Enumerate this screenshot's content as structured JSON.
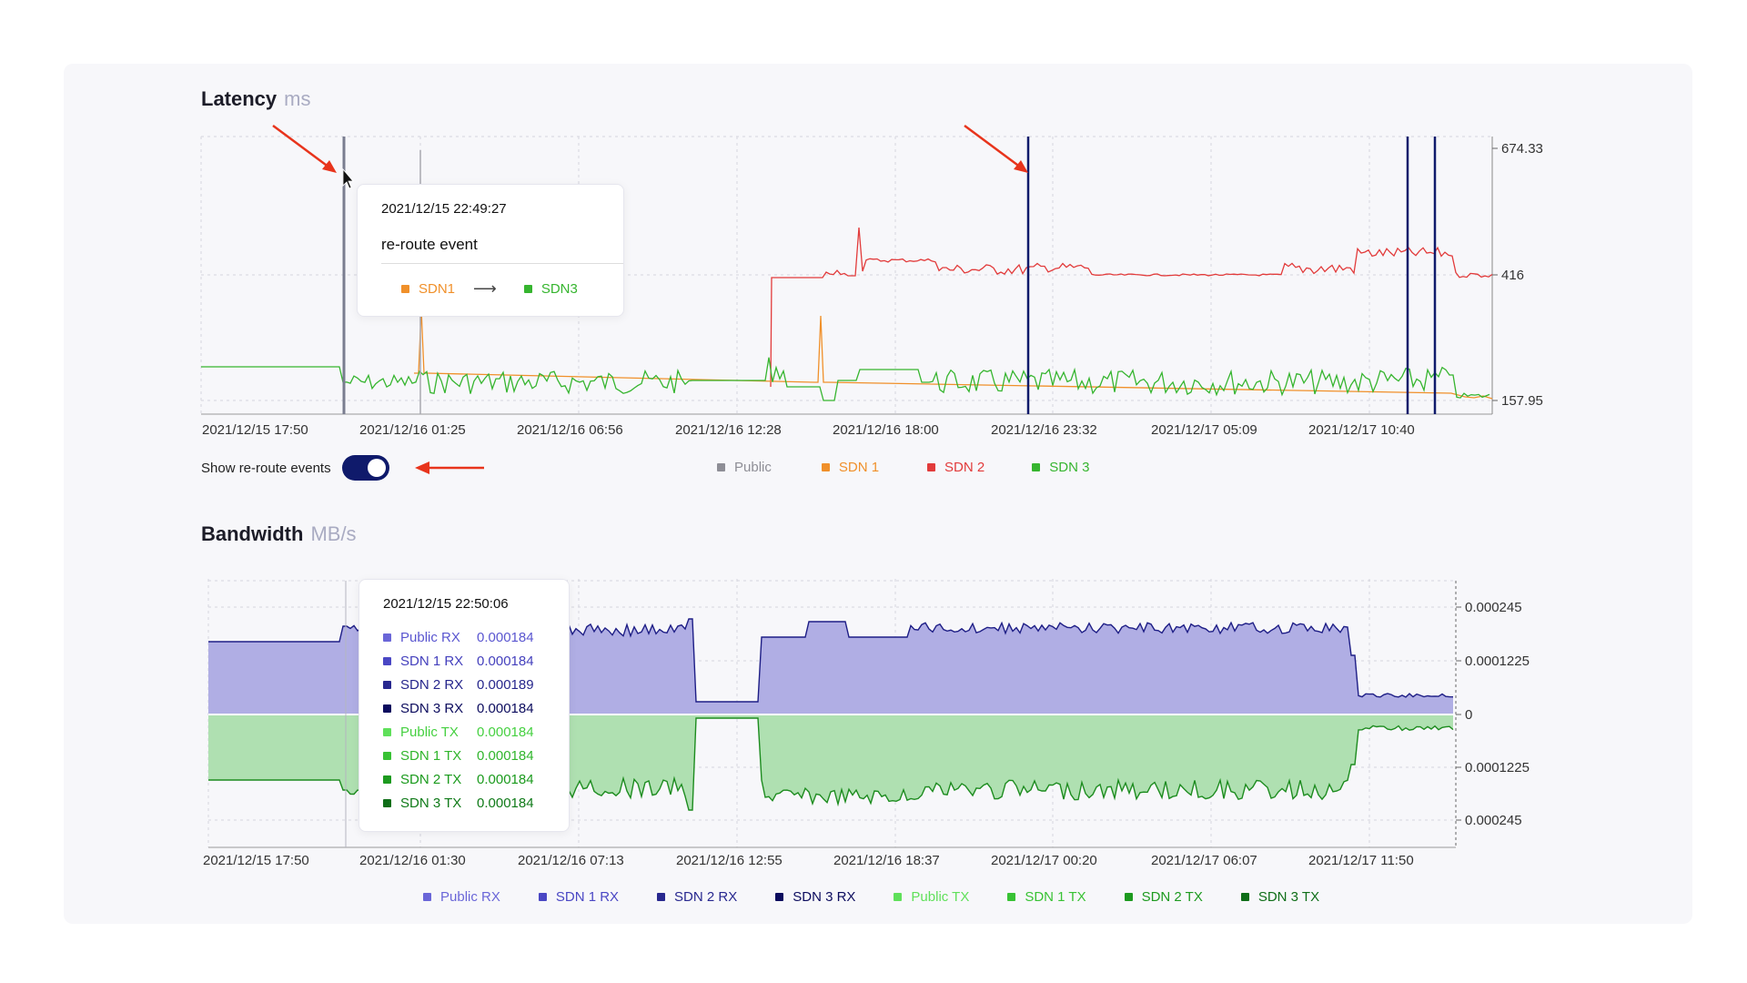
{
  "latency": {
    "title": "Latency",
    "unit": "ms",
    "y_ticks": [
      "674.33",
      "416",
      "157.95"
    ],
    "x_ticks": [
      "2021/12/15 17:50",
      "2021/12/16 01:25",
      "2021/12/16 06:56",
      "2021/12/16 12:28",
      "2021/12/16 18:00",
      "2021/12/16 23:32",
      "2021/12/17 05:09",
      "2021/12/17 10:40"
    ],
    "legend": [
      {
        "label": "Public",
        "color": "#8e8e96"
      },
      {
        "label": "SDN 1",
        "color": "#f0902a"
      },
      {
        "label": "SDN 2",
        "color": "#e23b3b"
      },
      {
        "label": "SDN 3",
        "color": "#36b52f"
      }
    ],
    "tooltip": {
      "time": "2021/12/15 22:49:27",
      "title": "re-route event",
      "from": "SDN1",
      "arrow": "⟶",
      "to": "SDN3",
      "from_color": "#f0902a",
      "to_color": "#36b52f"
    }
  },
  "toggle": {
    "label": "Show re-route events",
    "on": true
  },
  "bandwidth": {
    "title": "Bandwidth",
    "unit": "MB/s",
    "y_ticks": [
      "0.000245",
      "0.0001225",
      "0",
      "0.0001225",
      "0.000245"
    ],
    "x_ticks": [
      "2021/12/15 17:50",
      "2021/12/16 01:30",
      "2021/12/16 07:13",
      "2021/12/16 12:55",
      "2021/12/16 18:37",
      "2021/12/17 00:20",
      "2021/12/17 06:07",
      "2021/12/17 11:50"
    ],
    "legend": [
      {
        "label": "Public RX",
        "color": "#6a66d8"
      },
      {
        "label": "SDN 1 RX",
        "color": "#4a47c4"
      },
      {
        "label": "SDN 2 RX",
        "color": "#28288f"
      },
      {
        "label": "SDN 3 RX",
        "color": "#0c0c5e"
      },
      {
        "label": "Public TX",
        "color": "#5fe05a"
      },
      {
        "label": "SDN 1 TX",
        "color": "#38c234"
      },
      {
        "label": "SDN 2 TX",
        "color": "#1d9a1f"
      },
      {
        "label": "SDN 3 TX",
        "color": "#0f6e18"
      }
    ],
    "tooltip": {
      "time": "2021/12/15 22:50:06",
      "rows": [
        {
          "name": "Public RX",
          "value": "0.000184",
          "color": "#6a66d8",
          "text_color": "#5a56d0"
        },
        {
          "name": "SDN 1 RX",
          "value": "0.000184",
          "color": "#4a47c4",
          "text_color": "#4440bd"
        },
        {
          "name": "SDN 2 RX",
          "value": "0.000189",
          "color": "#28288f",
          "text_color": "#26268c"
        },
        {
          "name": "SDN 3 RX",
          "value": "0.000184",
          "color": "#0c0c5e",
          "text_color": "#0c0c5e"
        },
        {
          "name": "Public TX",
          "value": "0.000184",
          "color": "#5fe05a",
          "text_color": "#45d040"
        },
        {
          "name": "SDN 1 TX",
          "value": "0.000184",
          "color": "#38c234",
          "text_color": "#30b52c"
        },
        {
          "name": "SDN 2 TX",
          "value": "0.000184",
          "color": "#1d9a1f",
          "text_color": "#1a9a1c"
        },
        {
          "name": "SDN 3 TX",
          "value": "0.000184",
          "color": "#0f6e18",
          "text_color": "#0f7a18"
        }
      ]
    }
  }
}
